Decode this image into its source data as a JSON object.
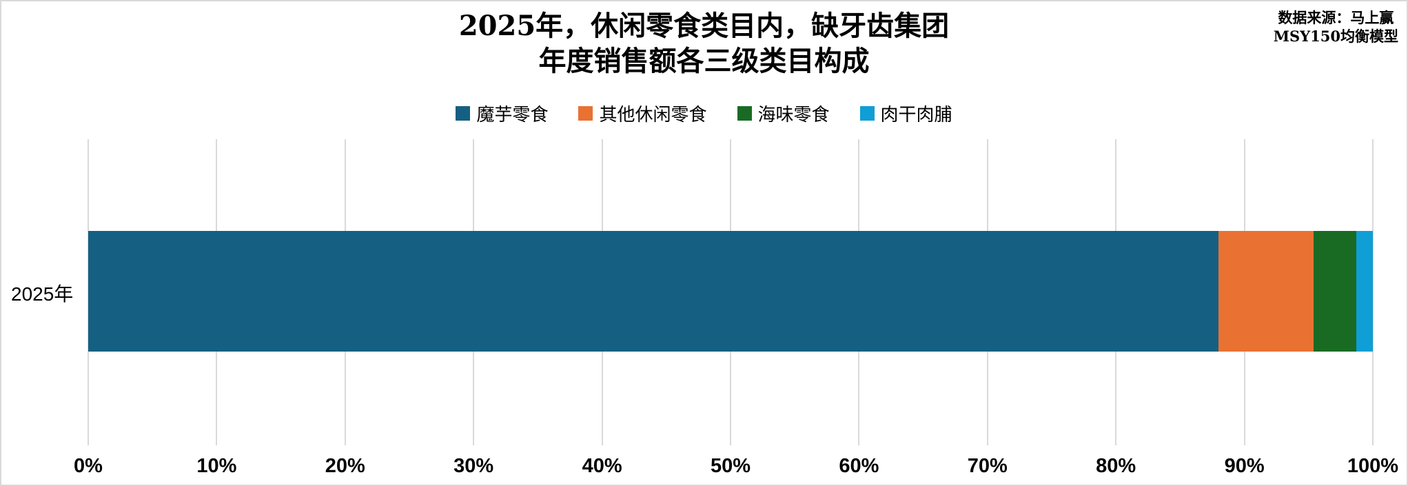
{
  "title": {
    "line1": "2025年，休闲零食类目内，缺牙齿集团",
    "line2": "年度销售额各三级类目构成"
  },
  "source": {
    "line1": "数据来源：马上赢",
    "line2": "MSY150均衡模型"
  },
  "chart_data": {
    "type": "bar",
    "orientation": "horizontal",
    "stacked": true,
    "title": "2025年，休闲零食类目内，缺牙齿集团 年度销售额各三级类目构成",
    "source_note": "数据来源：马上赢 MSY150均衡模型",
    "categories": [
      "2025年"
    ],
    "series": [
      {
        "name": "魔芋零食",
        "color": "#156082",
        "values": [
          88.0
        ]
      },
      {
        "name": "其他休闲零食",
        "color": "#E97132",
        "values": [
          7.4
        ]
      },
      {
        "name": "海味零食",
        "color": "#196B24",
        "values": [
          3.3
        ]
      },
      {
        "name": "肉干肉脯",
        "color": "#0F9ED5",
        "values": [
          1.3
        ]
      }
    ],
    "xlim": [
      0,
      100
    ],
    "x_tick_labels": [
      "0%",
      "10%",
      "20%",
      "30%",
      "40%",
      "50%",
      "60%",
      "70%",
      "80%",
      "90%",
      "100%"
    ],
    "grid": "vertical",
    "gridline_color": "#D9D9D9",
    "legend_position": "top",
    "background": "#FFFFFF",
    "border_color": "#D9D9D9"
  }
}
